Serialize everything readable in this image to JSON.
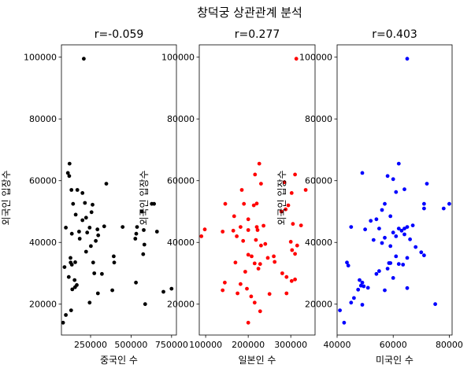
{
  "figure": {
    "suptitle": "창덕궁 상관관계 분석"
  },
  "chart_data": [
    {
      "type": "scatter",
      "title": "r=-0.059",
      "xlabel": "중국인 수",
      "ylabel": "외국인 입장수",
      "color": "#000000",
      "xlim": [
        70000,
        780000
      ],
      "ylim": [
        10000,
        104000
      ],
      "xticks": [
        250000,
        500000,
        750000
      ],
      "xtick_labels": [
        "250000",
        "500000",
        "750000"
      ],
      "yticks": [
        20000,
        40000,
        60000,
        80000,
        100000
      ],
      "ytick_labels": [
        "20000",
        "40000",
        "60000",
        "80000",
        "100000"
      ],
      "points": [
        [
          208000,
          99500
        ],
        [
          120000,
          65500
        ],
        [
          110000,
          62500
        ],
        [
          118000,
          61500
        ],
        [
          347000,
          59000
        ],
        [
          132000,
          57000
        ],
        [
          168000,
          57000
        ],
        [
          200000,
          56000
        ],
        [
          142000,
          52500
        ],
        [
          215000,
          52800
        ],
        [
          262000,
          52200
        ],
        [
          256000,
          49800
        ],
        [
          158000,
          49000
        ],
        [
          222000,
          48000
        ],
        [
          200000,
          47200
        ],
        [
          97000,
          44800
        ],
        [
          244000,
          44800
        ],
        [
          334000,
          45200
        ],
        [
          292000,
          44200
        ],
        [
          134000,
          42800
        ],
        [
          179000,
          43500
        ],
        [
          229000,
          43200
        ],
        [
          297000,
          42300
        ],
        [
          282000,
          40500
        ],
        [
          183000,
          41200
        ],
        [
          252000,
          38800
        ],
        [
          222000,
          37000
        ],
        [
          393000,
          35500
        ],
        [
          396000,
          33500
        ],
        [
          126000,
          35000
        ],
        [
          127000,
          33500
        ],
        [
          134000,
          32800
        ],
        [
          155000,
          33600
        ],
        [
          89000,
          32000
        ],
        [
          266000,
          33500
        ],
        [
          273000,
          30000
        ],
        [
          320000,
          29800
        ],
        [
          115000,
          28800
        ],
        [
          151000,
          27800
        ],
        [
          165000,
          26200
        ],
        [
          137000,
          24800
        ],
        [
          154000,
          25500
        ],
        [
          244000,
          20500
        ],
        [
          295000,
          23500
        ],
        [
          97000,
          16500
        ],
        [
          130000,
          18000
        ],
        [
          384000,
          24500
        ],
        [
          448000,
          45000
        ],
        [
          537000,
          45000
        ],
        [
          532000,
          42800
        ],
        [
          526000,
          41200
        ],
        [
          530000,
          27000
        ],
        [
          566000,
          50000
        ],
        [
          578000,
          44000
        ],
        [
          582000,
          39300
        ],
        [
          575000,
          36200
        ],
        [
          642000,
          52500
        ],
        [
          628000,
          52500
        ],
        [
          660000,
          43500
        ],
        [
          587000,
          20000
        ],
        [
          700000,
          24000
        ],
        [
          750000,
          25000
        ],
        [
          80000,
          14000
        ]
      ]
    },
    {
      "type": "scatter",
      "title": "r=0.277",
      "xlabel": "일본인 수",
      "ylabel": "외국인 입장수",
      "color": "#ff0000",
      "xlim": [
        85000,
        357000
      ],
      "ylim": [
        10000,
        104000
      ],
      "xticks": [
        100000,
        200000,
        300000
      ],
      "xtick_labels": [
        "100000",
        "200000",
        "300000"
      ],
      "yticks": [
        20000,
        40000,
        60000,
        80000,
        100000
      ],
      "ytick_labels": [
        "20000",
        "40000",
        "60000",
        "80000",
        "100000"
      ],
      "points": [
        [
          313000,
          99500
        ],
        [
          226000,
          65500
        ],
        [
          216000,
          62000
        ],
        [
          310000,
          62000
        ],
        [
          230000,
          59000
        ],
        [
          285000,
          59500
        ],
        [
          185000,
          57000
        ],
        [
          335000,
          57000
        ],
        [
          302000,
          56000
        ],
        [
          190000,
          52500
        ],
        [
          213000,
          52000
        ],
        [
          220000,
          52600
        ],
        [
          146000,
          52500
        ],
        [
          288000,
          50700
        ],
        [
          294000,
          52000
        ],
        [
          278000,
          50000
        ],
        [
          167000,
          48500
        ],
        [
          200000,
          47500
        ],
        [
          236000,
          45400
        ],
        [
          220000,
          45000
        ],
        [
          305000,
          46000
        ],
        [
          324000,
          45500
        ],
        [
          182000,
          45000
        ],
        [
          165000,
          43800
        ],
        [
          200000,
          44000
        ],
        [
          140000,
          43500
        ],
        [
          222000,
          44000
        ],
        [
          98000,
          44200
        ],
        [
          90000,
          42000
        ],
        [
          173000,
          42000
        ],
        [
          218000,
          40800
        ],
        [
          188000,
          40500
        ],
        [
          240000,
          39500
        ],
        [
          230000,
          39000
        ],
        [
          300000,
          40200
        ],
        [
          315000,
          39000
        ],
        [
          303000,
          37500
        ],
        [
          200000,
          36000
        ],
        [
          208000,
          35500
        ],
        [
          246000,
          35000
        ],
        [
          260000,
          35500
        ],
        [
          310000,
          36300
        ],
        [
          170000,
          33500
        ],
        [
          215000,
          33200
        ],
        [
          228000,
          33000
        ],
        [
          262000,
          33700
        ],
        [
          193000,
          30500
        ],
        [
          224000,
          31500
        ],
        [
          280000,
          30000
        ],
        [
          290000,
          28800
        ],
        [
          310000,
          28000
        ],
        [
          302000,
          27500
        ],
        [
          145000,
          27000
        ],
        [
          182000,
          26500
        ],
        [
          197000,
          25000
        ],
        [
          207000,
          22500
        ],
        [
          290000,
          23500
        ],
        [
          140000,
          24500
        ],
        [
          175000,
          23500
        ],
        [
          250000,
          23300
        ],
        [
          215000,
          20500
        ],
        [
          228000,
          17700
        ],
        [
          200000,
          14000
        ]
      ]
    },
    {
      "type": "scatter",
      "title": "r=0.403",
      "xlabel": "미국인 수",
      "ylabel": "외국인 입장수",
      "color": "#0000ff",
      "xlim": [
        40000,
        81000
      ],
      "ylim": [
        10000,
        104000
      ],
      "xticks": [
        40000,
        60000,
        80000
      ],
      "xtick_labels": [
        "40000",
        "60000",
        "80000"
      ],
      "yticks": [
        20000,
        40000,
        60000,
        80000,
        100000
      ],
      "ytick_labels": [
        "20000",
        "40000",
        "60000",
        "80000",
        "100000"
      ],
      "points": [
        [
          65000,
          99500
        ],
        [
          62000,
          65500
        ],
        [
          49000,
          62500
        ],
        [
          58000,
          61500
        ],
        [
          60000,
          60500
        ],
        [
          72000,
          59000
        ],
        [
          64000,
          57200
        ],
        [
          61000,
          56300
        ],
        [
          78000,
          51000
        ],
        [
          80000,
          52500
        ],
        [
          71000,
          52500
        ],
        [
          71000,
          51000
        ],
        [
          57000,
          52500
        ],
        [
          56000,
          50500
        ],
        [
          52000,
          47000
        ],
        [
          54000,
          47500
        ],
        [
          45000,
          45000
        ],
        [
          59000,
          48500
        ],
        [
          62000,
          44500
        ],
        [
          64000,
          44500
        ],
        [
          65000,
          45000
        ],
        [
          67000,
          45500
        ],
        [
          60000,
          43200
        ],
        [
          63000,
          43800
        ],
        [
          55000,
          44500
        ],
        [
          50000,
          44200
        ],
        [
          61000,
          42000
        ],
        [
          64000,
          42600
        ],
        [
          66000,
          41000
        ],
        [
          57000,
          41500
        ],
        [
          53000,
          40800
        ],
        [
          56000,
          39800
        ],
        [
          59000,
          38800
        ],
        [
          68000,
          38500
        ],
        [
          70000,
          36800
        ],
        [
          71000,
          35800
        ],
        [
          65000,
          35000
        ],
        [
          61000,
          35500
        ],
        [
          43500,
          33500
        ],
        [
          44000,
          32500
        ],
        [
          59000,
          33300
        ],
        [
          58500,
          33300
        ],
        [
          62000,
          33000
        ],
        [
          63500,
          32800
        ],
        [
          58000,
          31500
        ],
        [
          55000,
          30700
        ],
        [
          54000,
          29800
        ],
        [
          60000,
          28500
        ],
        [
          48000,
          27800
        ],
        [
          49000,
          27000
        ],
        [
          49500,
          25800
        ],
        [
          48500,
          26000
        ],
        [
          51000,
          25300
        ],
        [
          47500,
          24700
        ],
        [
          57000,
          24500
        ],
        [
          65000,
          25200
        ],
        [
          46000,
          22000
        ],
        [
          45000,
          20500
        ],
        [
          49000,
          19800
        ],
        [
          75000,
          20000
        ],
        [
          41000,
          18000
        ],
        [
          42500,
          14000
        ]
      ]
    }
  ]
}
